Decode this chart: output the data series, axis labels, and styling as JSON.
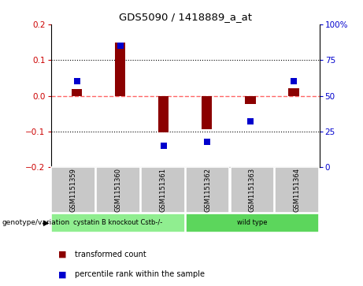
{
  "title": "GDS5090 / 1418889_a_at",
  "samples": [
    "GSM1151359",
    "GSM1151360",
    "GSM1151361",
    "GSM1151362",
    "GSM1151363",
    "GSM1151364"
  ],
  "transformed_count": [
    0.02,
    0.15,
    -0.102,
    -0.093,
    -0.022,
    0.022
  ],
  "percentile_rank": [
    60,
    85,
    15,
    18,
    32,
    60
  ],
  "ylim_left": [
    -0.2,
    0.2
  ],
  "ylim_right": [
    0,
    100
  ],
  "yticks_left": [
    -0.2,
    -0.1,
    0.0,
    0.1,
    0.2
  ],
  "yticks_right": [
    0,
    25,
    50,
    75,
    100
  ],
  "ytick_labels_right": [
    "0",
    "25",
    "50",
    "75",
    "100%"
  ],
  "bar_color": "#8B0000",
  "dot_color": "#0000CD",
  "zero_line_color": "#FF6666",
  "dot_line_color": "#9999FF",
  "grid_color": "#000000",
  "groups": [
    {
      "label": "cystatin B knockout Cstb-/-",
      "indices": [
        0,
        1,
        2
      ],
      "color": "#90EE90"
    },
    {
      "label": "wild type",
      "indices": [
        3,
        4,
        5
      ],
      "color": "#5CD65C"
    }
  ],
  "group_row_label": "genotype/variation",
  "legend_items": [
    {
      "label": "transformed count",
      "color": "#8B0000"
    },
    {
      "label": "percentile rank within the sample",
      "color": "#0000CD"
    }
  ],
  "bar_width": 0.25,
  "dot_size": 40,
  "tick_label_color_left": "#CC0000",
  "tick_label_color_right": "#0000CD",
  "sample_box_color": "#C8C8C8",
  "plot_bg": "#FFFFFF"
}
